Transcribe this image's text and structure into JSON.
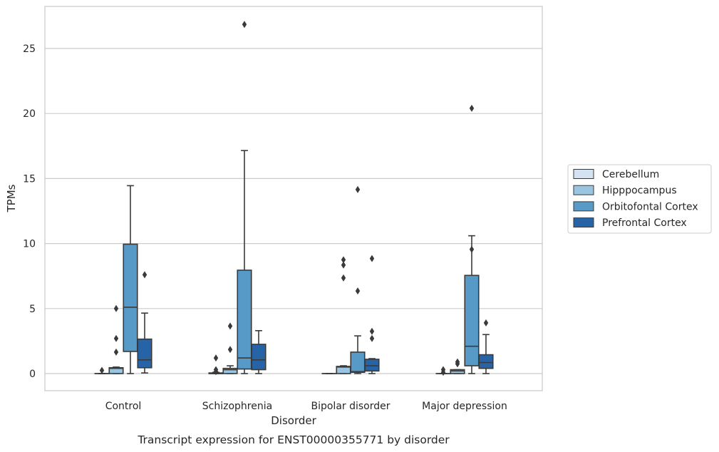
{
  "chart_data": {
    "type": "box",
    "xlabel": "Disorder",
    "ylabel": "TPMs",
    "caption": "Transcript expression for ENST00000355771 by disorder",
    "ylim": [
      -1.3,
      28.3
    ],
    "yticks": [
      0,
      5,
      10,
      15,
      20,
      25
    ],
    "grid": true,
    "legend_position": "right",
    "categories": [
      "Control",
      "Schizophrenia",
      "Bipolar disorder",
      "Major depression"
    ],
    "series": [
      {
        "name": "Cerebellum",
        "color": "#d3e3f1",
        "boxes": [
          {
            "whisker_low": 0,
            "q1": 0,
            "median": 0,
            "q3": 0,
            "whisker_high": 0,
            "outliers": [
              0.25
            ]
          },
          {
            "whisker_low": 0,
            "q1": 0,
            "median": 0,
            "q3": 0.05,
            "whisker_high": 0.1,
            "outliers": [
              1.2,
              0.3,
              0.15
            ]
          },
          {
            "whisker_low": 0,
            "q1": 0,
            "median": 0,
            "q3": 0,
            "whisker_high": 0,
            "outliers": []
          },
          {
            "whisker_low": 0,
            "q1": 0,
            "median": 0,
            "q3": 0,
            "whisker_high": 0,
            "outliers": [
              0.3,
              0.1
            ]
          }
        ]
      },
      {
        "name": "Hipppocampus",
        "color": "#9ac5e0",
        "boxes": [
          {
            "whisker_low": 0,
            "q1": 0,
            "median": 0.4,
            "q3": 0.45,
            "whisker_high": 0.5,
            "outliers": [
              5.0,
              2.7,
              1.65
            ]
          },
          {
            "whisker_low": 0,
            "q1": 0,
            "median": 0.3,
            "q3": 0.4,
            "whisker_high": 0.6,
            "outliers": [
              3.65,
              1.85
            ]
          },
          {
            "whisker_low": 0,
            "q1": 0,
            "median": 0.5,
            "q3": 0.55,
            "whisker_high": 0.6,
            "outliers": [
              8.75,
              8.35,
              7.35
            ]
          },
          {
            "whisker_low": 0,
            "q1": 0,
            "median": 0.2,
            "q3": 0.3,
            "whisker_high": 0.3,
            "outliers": [
              0.9,
              0.75
            ]
          }
        ]
      },
      {
        "name": "Orbitofontal Cortex",
        "color": "#5799c7",
        "boxes": [
          {
            "whisker_low": 0,
            "q1": 1.7,
            "median": 5.1,
            "q3": 9.95,
            "whisker_high": 14.45,
            "outliers": []
          },
          {
            "whisker_low": 0,
            "q1": 0.35,
            "median": 1.2,
            "q3": 7.95,
            "whisker_high": 17.15,
            "outliers": [
              26.85
            ]
          },
          {
            "whisker_low": 0,
            "q1": 0.1,
            "median": 0.15,
            "q3": 1.65,
            "whisker_high": 2.9,
            "outliers": [
              14.15,
              6.35
            ]
          },
          {
            "whisker_low": 0,
            "q1": 0.6,
            "median": 2.1,
            "q3": 7.55,
            "whisker_high": 10.6,
            "outliers": [
              20.4,
              9.55
            ]
          }
        ]
      },
      {
        "name": "Prefrontal Cortex",
        "color": "#2764a7",
        "boxes": [
          {
            "whisker_low": 0.05,
            "q1": 0.45,
            "median": 1.05,
            "q3": 2.65,
            "whisker_high": 4.65,
            "outliers": [
              7.6
            ]
          },
          {
            "whisker_low": 0,
            "q1": 0.3,
            "median": 1.05,
            "q3": 2.25,
            "whisker_high": 3.3,
            "outliers": []
          },
          {
            "whisker_low": 0,
            "q1": 0.2,
            "median": 0.6,
            "q3": 1.1,
            "whisker_high": 1.15,
            "outliers": [
              8.85,
              3.25,
              2.7
            ]
          },
          {
            "whisker_low": 0,
            "q1": 0.4,
            "median": 0.85,
            "q3": 1.45,
            "whisker_high": 3.0,
            "outliers": [
              3.9
            ]
          }
        ]
      }
    ]
  }
}
